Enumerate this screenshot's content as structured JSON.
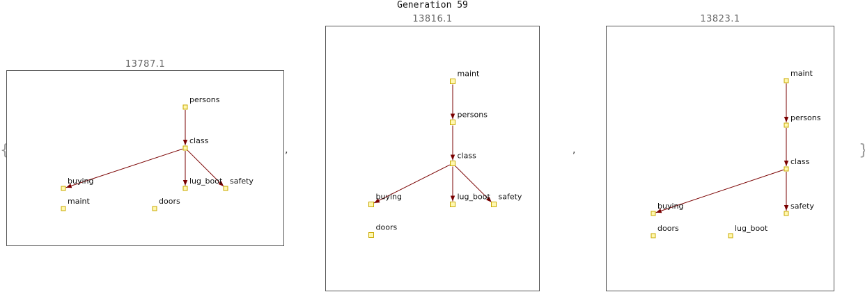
{
  "title": "Generation 59",
  "open_brace": "{",
  "close_brace": "}",
  "separator": ",",
  "panels": [
    {
      "score": "13787.1",
      "nodes": [
        {
          "id": "persons",
          "label": "persons"
        },
        {
          "id": "class",
          "label": "class"
        },
        {
          "id": "buying",
          "label": "buying"
        },
        {
          "id": "lug_boot",
          "label": "lug_boot"
        },
        {
          "id": "safety",
          "label": "safety"
        },
        {
          "id": "maint",
          "label": "maint"
        },
        {
          "id": "doors",
          "label": "doors"
        }
      ],
      "edges": [
        [
          "persons",
          "class"
        ],
        [
          "class",
          "buying"
        ],
        [
          "class",
          "lug_boot"
        ],
        [
          "class",
          "safety"
        ]
      ]
    },
    {
      "score": "13816.1",
      "nodes": [
        {
          "id": "maint",
          "label": "maint"
        },
        {
          "id": "persons",
          "label": "persons"
        },
        {
          "id": "class",
          "label": "class"
        },
        {
          "id": "buying",
          "label": "buying"
        },
        {
          "id": "lug_boot",
          "label": "lug_boot"
        },
        {
          "id": "safety",
          "label": "safety"
        },
        {
          "id": "doors",
          "label": "doors"
        }
      ],
      "edges": [
        [
          "maint",
          "persons"
        ],
        [
          "persons",
          "class"
        ],
        [
          "class",
          "buying"
        ],
        [
          "class",
          "lug_boot"
        ],
        [
          "class",
          "safety"
        ]
      ]
    },
    {
      "score": "13823.1",
      "nodes": [
        {
          "id": "maint",
          "label": "maint"
        },
        {
          "id": "persons",
          "label": "persons"
        },
        {
          "id": "class",
          "label": "class"
        },
        {
          "id": "buying",
          "label": "buying"
        },
        {
          "id": "safety",
          "label": "safety"
        },
        {
          "id": "doors",
          "label": "doors"
        },
        {
          "id": "lug_boot",
          "label": "lug_boot"
        }
      ],
      "edges": [
        [
          "maint",
          "persons"
        ],
        [
          "persons",
          "class"
        ],
        [
          "class",
          "buying"
        ],
        [
          "class",
          "safety"
        ]
      ]
    }
  ]
}
